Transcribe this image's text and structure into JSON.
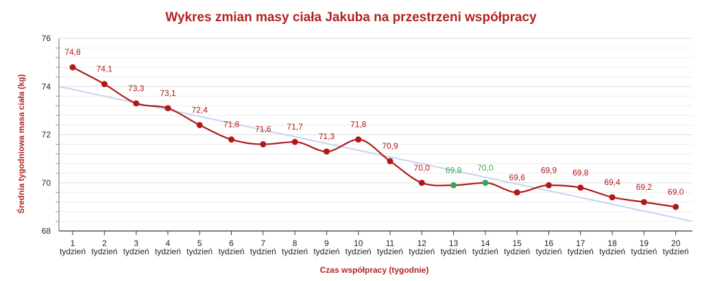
{
  "chart_data": {
    "type": "line",
    "title": "Wykres zmian masy ciała Jakuba na przestrzeni współpracy",
    "xlabel": "Czas współpracy (tygodnie)",
    "ylabel": "Średnia tygodniowa masa ciała (kg)",
    "ylim": [
      68,
      76
    ],
    "yticks": [
      "68",
      "70",
      "72",
      "74",
      "76"
    ],
    "tick_unit": "tydzień",
    "categories": [
      "1",
      "2",
      "3",
      "4",
      "5",
      "6",
      "7",
      "8",
      "9",
      "10",
      "11",
      "12",
      "13",
      "14",
      "15",
      "16",
      "17",
      "18",
      "19",
      "20"
    ],
    "values": [
      74.8,
      74.1,
      73.3,
      73.1,
      72.4,
      71.8,
      71.6,
      71.7,
      71.3,
      71.8,
      70.9,
      70.0,
      69.9,
      70.0,
      69.6,
      69.9,
      69.8,
      69.4,
      69.2,
      69.0
    ],
    "value_labels": [
      "74,8",
      "74,1",
      "73,3",
      "73,1",
      "72,4",
      "71,8",
      "71,6",
      "71,7",
      "71,3",
      "71,8",
      "70,9",
      "70,0",
      "69,9",
      "70,0",
      "69,6",
      "69,9",
      "69,8",
      "69,4",
      "69,2",
      "69,0"
    ],
    "highlighted_indices": [
      12,
      13
    ],
    "trendline": {
      "start": 74.0,
      "end": 68.4
    },
    "grid": true,
    "colors": {
      "series": "#b01818",
      "highlight": "#3aa655",
      "trend": "#c6d4ee",
      "title": "#b22222",
      "grid": "#dcdcdc"
    }
  }
}
